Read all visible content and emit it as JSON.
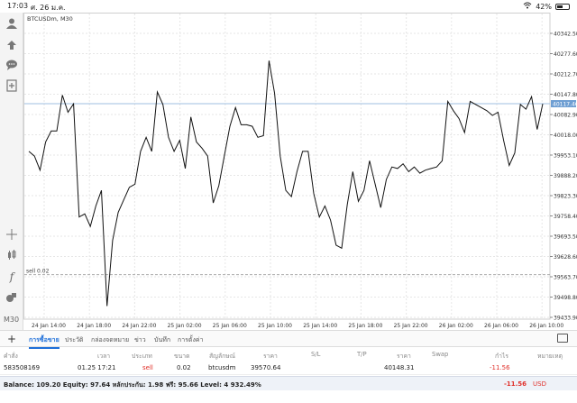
{
  "status": {
    "time": "17:03",
    "date": "ศ. 26 ม.ค.",
    "battery": "42%"
  },
  "chart": {
    "symbol": "BTCUSDm, M30",
    "current_price_label": "40117.46",
    "sell_level_label": "sell 0.02",
    "timeframe_button": "M30"
  },
  "chart_data": {
    "type": "line",
    "price_ticks": [
      "40342.50",
      "40277.60",
      "40212.70",
      "40147.80",
      "40082.90",
      "40018.00",
      "39953.10",
      "39888.20",
      "39823.30",
      "39758.40",
      "39693.50",
      "39628.60",
      "39563.70",
      "39498.80",
      "39433.90"
    ],
    "time_ticks": [
      "24 Jan 14:00",
      "24 Jan 18:00",
      "24 Jan 22:00",
      "25 Jan 02:00",
      "25 Jan 06:00",
      "25 Jan 10:00",
      "25 Jan 14:00",
      "25 Jan 18:00",
      "25 Jan 22:00",
      "26 Jan 02:00",
      "26 Jan 06:00",
      "26 Jan 10:00"
    ],
    "current_price": 40117.46,
    "sell_price": 39570.64,
    "ylim": [
      39433.9,
      40342.5
    ],
    "series": [
      {
        "values": [
          39965,
          39950,
          39905,
          39995,
          40030,
          40030,
          40145,
          40090,
          40117,
          39755,
          39765,
          39725,
          39790,
          39840,
          39470,
          39680,
          39770,
          39810,
          39850,
          39860,
          39965,
          40010,
          39965,
          40155,
          40115,
          40010,
          39965,
          40000,
          39910,
          40075,
          39995,
          39975,
          39950,
          39800,
          39855,
          39950,
          40045,
          40105,
          40050,
          40050,
          40045,
          40010,
          40015,
          40255,
          40150,
          39950,
          39840,
          39820,
          39900,
          39965,
          39965,
          39830,
          39755,
          39790,
          39745,
          39665,
          39655,
          39795,
          39900,
          39805,
          39840,
          39935,
          39860,
          39785,
          39875,
          39915,
          39910,
          39925,
          39900,
          39915,
          39895,
          39905,
          39910,
          39915,
          39935,
          40125,
          40095,
          40070,
          40025,
          40125,
          40115,
          40105,
          40095,
          40080,
          40090,
          40000,
          39920,
          39960,
          40115,
          40100,
          40140,
          40035,
          40117
        ]
      }
    ]
  },
  "toolbar": {
    "icons": [
      "person-icon",
      "add-order-icon",
      "chat-icon",
      "new-chart-icon",
      "crosshair-icon",
      "candles-icon",
      "indicator-icon",
      "objects-icon"
    ]
  },
  "tabs": [
    "การซื้อขาย",
    "ประวัติ",
    "กล่องจดหมาย",
    "ข่าว",
    "บันทึก",
    "การตั้งค่า"
  ],
  "table": {
    "headers": [
      "คำสั่ง",
      "เวลา",
      "ประเภท",
      "ขนาด",
      "สัญลักษณ์",
      "ราคา",
      "S/L",
      "T/P",
      "ราคา",
      "Swap",
      "กำไร",
      "หมายเหตุ"
    ],
    "row": {
      "order": "583508169",
      "time": "01.25 17:21",
      "type": "sell",
      "volume": "0.02",
      "symbol": "btcusdm",
      "open_price": "39570.64",
      "current_price": "40148.31",
      "profit": "-11.56"
    }
  },
  "balance": {
    "summary": "Balance: 109.20 Equity: 97.64 หลักประกัน: 1.98 ฟรี: 95.66 Level: 4 932.49%",
    "pl": "-11.56",
    "currency": "USD"
  },
  "colors": {
    "accent": "#1e6fd9",
    "loss": "#e0302a",
    "price_line": "#9fbfe0"
  }
}
